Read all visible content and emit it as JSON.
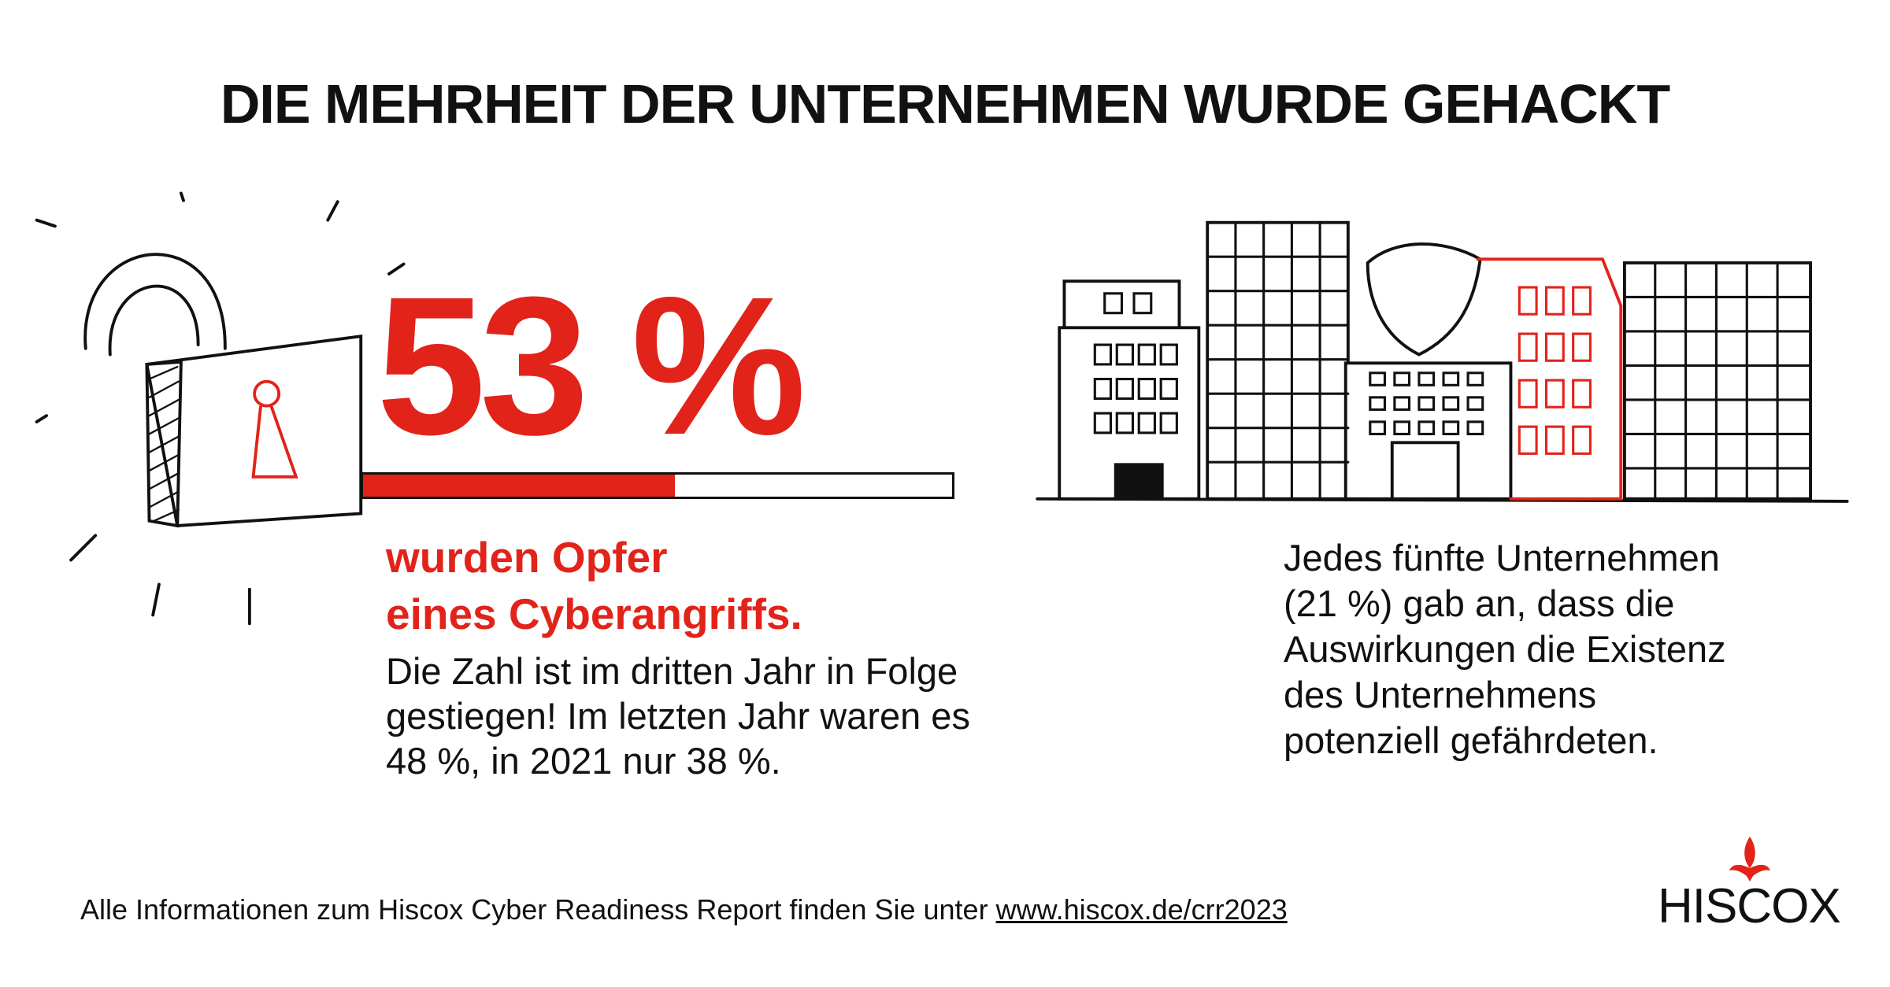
{
  "title": "DIE MEHRHEIT DER UNTERNEHMEN WURDE GEHACKT",
  "stat": {
    "value": 53,
    "label": "53 %"
  },
  "stat_caption": [
    "wurden Opfer",
    "eines Cyberangriffs."
  ],
  "stat_description": [
    "Die Zahl ist im dritten Jahr in Folge",
    "gestiegen! Im letzten Jahr waren es",
    "48 %, in 2021 nur 38 %."
  ],
  "side_text": [
    "Jedes fünfte Unternehmen",
    "(21 %) gab an, dass die",
    "Auswirkungen die Existenz",
    "des Unternehmens",
    "potenziell gefährdeten."
  ],
  "footer": {
    "text": "Alle Informationen zum Hiscox Cyber Readiness Report finden Sie unter ",
    "link": "www.hiscox.de/crr2023"
  },
  "logo": "HISCOX"
}
